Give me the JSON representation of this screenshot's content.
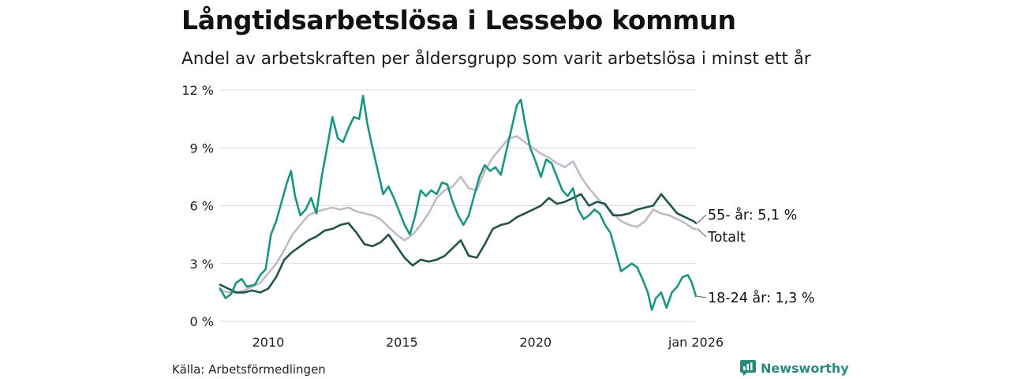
{
  "title": "Långtidsarbetslösa i Lessebo kommun",
  "subtitle": "Andel av arbetskraften per åldersgrupp som varit arbetslösa i minst ett år",
  "source": "Källa: Arbetsförmedlingen",
  "brand": "Newsworthy",
  "chart_data": {
    "type": "line",
    "x_range": [
      2008.2,
      2026.0
    ],
    "ylim": [
      0,
      12
    ],
    "y_ticks": [
      0,
      3,
      6,
      9,
      12
    ],
    "y_tick_labels": [
      "0 %",
      "3 %",
      "6 %",
      "9 %",
      "12 %"
    ],
    "x_ticks": [
      2010,
      2015,
      2020,
      2026.0
    ],
    "x_tick_labels": [
      "2010",
      "2015",
      "2020",
      "jan 2026"
    ],
    "grid": true,
    "series": [
      {
        "name": "Totalt",
        "label": "Totalt",
        "color": "#c2bac8",
        "points": [
          [
            2008.2,
            1.6
          ],
          [
            2008.5,
            1.5
          ],
          [
            2008.8,
            1.5
          ],
          [
            2009.1,
            1.6
          ],
          [
            2009.4,
            1.8
          ],
          [
            2009.7,
            2.0
          ],
          [
            2010.0,
            2.5
          ],
          [
            2010.3,
            3.0
          ],
          [
            2010.6,
            3.7
          ],
          [
            2010.9,
            4.5
          ],
          [
            2011.2,
            5.0
          ],
          [
            2011.5,
            5.5
          ],
          [
            2011.8,
            5.7
          ],
          [
            2012.1,
            5.8
          ],
          [
            2012.4,
            5.9
          ],
          [
            2012.7,
            5.8
          ],
          [
            2013.0,
            5.9
          ],
          [
            2013.3,
            5.7
          ],
          [
            2013.6,
            5.6
          ],
          [
            2013.9,
            5.5
          ],
          [
            2014.2,
            5.3
          ],
          [
            2014.5,
            4.9
          ],
          [
            2014.8,
            4.5
          ],
          [
            2015.1,
            4.2
          ],
          [
            2015.4,
            4.5
          ],
          [
            2015.7,
            5.0
          ],
          [
            2016.0,
            5.6
          ],
          [
            2016.3,
            6.4
          ],
          [
            2016.6,
            6.8
          ],
          [
            2016.9,
            7.0
          ],
          [
            2017.2,
            7.5
          ],
          [
            2017.5,
            6.9
          ],
          [
            2017.8,
            6.8
          ],
          [
            2018.1,
            7.8
          ],
          [
            2018.4,
            8.5
          ],
          [
            2018.7,
            9.0
          ],
          [
            2019.0,
            9.5
          ],
          [
            2019.3,
            9.6
          ],
          [
            2019.6,
            9.3
          ],
          [
            2019.9,
            9.0
          ],
          [
            2020.2,
            8.7
          ],
          [
            2020.5,
            8.5
          ],
          [
            2020.8,
            8.2
          ],
          [
            2021.1,
            8.0
          ],
          [
            2021.4,
            8.3
          ],
          [
            2021.7,
            7.5
          ],
          [
            2022.0,
            6.9
          ],
          [
            2022.3,
            6.4
          ],
          [
            2022.6,
            6.0
          ],
          [
            2022.9,
            5.6
          ],
          [
            2023.2,
            5.2
          ],
          [
            2023.5,
            5.0
          ],
          [
            2023.8,
            4.9
          ],
          [
            2024.1,
            5.2
          ],
          [
            2024.4,
            5.8
          ],
          [
            2024.7,
            5.6
          ],
          [
            2025.0,
            5.5
          ],
          [
            2025.3,
            5.3
          ],
          [
            2025.6,
            5.1
          ],
          [
            2025.9,
            4.8
          ],
          [
            2026.0,
            4.8
          ]
        ]
      },
      {
        "name": "55- år",
        "label": "55- år: 5,1 %",
        "color": "#22524a",
        "points": [
          [
            2008.2,
            1.9
          ],
          [
            2008.5,
            1.7
          ],
          [
            2008.8,
            1.5
          ],
          [
            2009.1,
            1.5
          ],
          [
            2009.4,
            1.6
          ],
          [
            2009.7,
            1.5
          ],
          [
            2010.0,
            1.7
          ],
          [
            2010.3,
            2.3
          ],
          [
            2010.6,
            3.2
          ],
          [
            2010.9,
            3.6
          ],
          [
            2011.2,
            3.9
          ],
          [
            2011.5,
            4.2
          ],
          [
            2011.8,
            4.4
          ],
          [
            2012.1,
            4.7
          ],
          [
            2012.4,
            4.8
          ],
          [
            2012.7,
            5.0
          ],
          [
            2013.0,
            5.1
          ],
          [
            2013.3,
            4.6
          ],
          [
            2013.6,
            4.0
          ],
          [
            2013.9,
            3.9
          ],
          [
            2014.2,
            4.1
          ],
          [
            2014.5,
            4.5
          ],
          [
            2014.8,
            3.9
          ],
          [
            2015.1,
            3.3
          ],
          [
            2015.4,
            2.9
          ],
          [
            2015.7,
            3.2
          ],
          [
            2016.0,
            3.1
          ],
          [
            2016.3,
            3.2
          ],
          [
            2016.6,
            3.4
          ],
          [
            2016.9,
            3.8
          ],
          [
            2017.2,
            4.2
          ],
          [
            2017.5,
            3.4
          ],
          [
            2017.8,
            3.3
          ],
          [
            2018.1,
            4.0
          ],
          [
            2018.4,
            4.8
          ],
          [
            2018.7,
            5.0
          ],
          [
            2019.0,
            5.1
          ],
          [
            2019.3,
            5.4
          ],
          [
            2019.6,
            5.6
          ],
          [
            2019.9,
            5.8
          ],
          [
            2020.2,
            6.0
          ],
          [
            2020.5,
            6.4
          ],
          [
            2020.8,
            6.1
          ],
          [
            2021.1,
            6.2
          ],
          [
            2021.4,
            6.4
          ],
          [
            2021.7,
            6.6
          ],
          [
            2022.0,
            6.0
          ],
          [
            2022.3,
            6.2
          ],
          [
            2022.6,
            6.1
          ],
          [
            2022.9,
            5.5
          ],
          [
            2023.2,
            5.5
          ],
          [
            2023.5,
            5.6
          ],
          [
            2023.8,
            5.8
          ],
          [
            2024.1,
            5.9
          ],
          [
            2024.4,
            6.0
          ],
          [
            2024.7,
            6.6
          ],
          [
            2025.0,
            6.1
          ],
          [
            2025.3,
            5.6
          ],
          [
            2025.6,
            5.4
          ],
          [
            2025.9,
            5.2
          ],
          [
            2026.0,
            5.1
          ]
        ]
      },
      {
        "name": "18-24 år",
        "label": "18-24 år: 1,3 %",
        "color": "#1a9580",
        "points": [
          [
            2008.2,
            1.7
          ],
          [
            2008.4,
            1.2
          ],
          [
            2008.6,
            1.4
          ],
          [
            2008.8,
            2.0
          ],
          [
            2009.0,
            2.2
          ],
          [
            2009.2,
            1.8
          ],
          [
            2009.5,
            1.9
          ],
          [
            2009.7,
            2.4
          ],
          [
            2009.9,
            2.7
          ],
          [
            2010.1,
            4.5
          ],
          [
            2010.3,
            5.2
          ],
          [
            2010.5,
            6.2
          ],
          [
            2010.7,
            7.2
          ],
          [
            2010.85,
            7.8
          ],
          [
            2011.0,
            6.5
          ],
          [
            2011.2,
            5.5
          ],
          [
            2011.4,
            5.8
          ],
          [
            2011.6,
            6.4
          ],
          [
            2011.8,
            5.6
          ],
          [
            2012.0,
            7.5
          ],
          [
            2012.2,
            9.0
          ],
          [
            2012.4,
            10.6
          ],
          [
            2012.6,
            9.5
          ],
          [
            2012.8,
            9.3
          ],
          [
            2013.0,
            10.0
          ],
          [
            2013.2,
            10.6
          ],
          [
            2013.4,
            10.5
          ],
          [
            2013.55,
            11.7
          ],
          [
            2013.7,
            10.3
          ],
          [
            2013.9,
            9.0
          ],
          [
            2014.1,
            7.8
          ],
          [
            2014.3,
            6.6
          ],
          [
            2014.5,
            7.0
          ],
          [
            2014.7,
            6.4
          ],
          [
            2014.9,
            5.7
          ],
          [
            2015.1,
            5.0
          ],
          [
            2015.3,
            4.5
          ],
          [
            2015.5,
            5.5
          ],
          [
            2015.7,
            6.8
          ],
          [
            2015.9,
            6.5
          ],
          [
            2016.1,
            6.8
          ],
          [
            2016.3,
            6.6
          ],
          [
            2016.5,
            7.2
          ],
          [
            2016.7,
            7.1
          ],
          [
            2016.9,
            6.2
          ],
          [
            2017.1,
            5.5
          ],
          [
            2017.3,
            5.0
          ],
          [
            2017.5,
            5.5
          ],
          [
            2017.7,
            6.5
          ],
          [
            2017.9,
            7.5
          ],
          [
            2018.1,
            8.1
          ],
          [
            2018.3,
            7.8
          ],
          [
            2018.5,
            8.0
          ],
          [
            2018.7,
            7.6
          ],
          [
            2018.9,
            8.8
          ],
          [
            2019.1,
            10.0
          ],
          [
            2019.3,
            11.2
          ],
          [
            2019.45,
            11.5
          ],
          [
            2019.6,
            10.3
          ],
          [
            2019.8,
            9.0
          ],
          [
            2020.0,
            8.3
          ],
          [
            2020.2,
            7.5
          ],
          [
            2020.4,
            8.4
          ],
          [
            2020.6,
            8.2
          ],
          [
            2020.8,
            7.5
          ],
          [
            2021.0,
            6.8
          ],
          [
            2021.2,
            6.5
          ],
          [
            2021.4,
            6.9
          ],
          [
            2021.6,
            5.8
          ],
          [
            2021.8,
            5.3
          ],
          [
            2022.0,
            5.5
          ],
          [
            2022.2,
            5.8
          ],
          [
            2022.4,
            5.6
          ],
          [
            2022.6,
            5.0
          ],
          [
            2022.8,
            4.6
          ],
          [
            2023.0,
            3.6
          ],
          [
            2023.2,
            2.6
          ],
          [
            2023.4,
            2.8
          ],
          [
            2023.6,
            3.0
          ],
          [
            2023.8,
            2.8
          ],
          [
            2024.0,
            2.2
          ],
          [
            2024.2,
            1.5
          ],
          [
            2024.35,
            0.6
          ],
          [
            2024.5,
            1.2
          ],
          [
            2024.7,
            1.5
          ],
          [
            2024.9,
            0.7
          ],
          [
            2025.1,
            1.5
          ],
          [
            2025.3,
            1.8
          ],
          [
            2025.5,
            2.3
          ],
          [
            2025.7,
            2.4
          ],
          [
            2025.85,
            2.0
          ],
          [
            2026.0,
            1.3
          ]
        ]
      }
    ]
  }
}
